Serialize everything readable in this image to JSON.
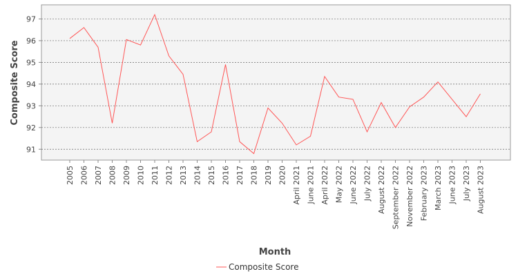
{
  "chart_data": {
    "type": "line",
    "categories": [
      "2005",
      "2006",
      "2007",
      "2008",
      "2009",
      "2010",
      "2011",
      "2012",
      "2013",
      "2014",
      "2015",
      "2016",
      "2017",
      "2018",
      "2019",
      "2020",
      "April 2021",
      "June 2021",
      "April 2022",
      "May 2022",
      "June 2022",
      "July 2022",
      "August 2022",
      "September 2022",
      "November 2022",
      "February 2023",
      "March 2023",
      "June 2023",
      "July 2023",
      "August 2023"
    ],
    "series": [
      {
        "name": "Composite Score",
        "color": "#ff5555",
        "values": [
          96.1,
          96.6,
          95.7,
          92.2,
          96.05,
          95.8,
          97.2,
          95.3,
          94.45,
          91.35,
          91.8,
          94.9,
          91.35,
          90.8,
          92.9,
          92.2,
          91.2,
          91.6,
          94.35,
          93.4,
          93.3,
          91.8,
          93.15,
          92.0,
          92.95,
          93.4,
          94.1,
          93.3,
          92.5,
          93.55
        ]
      }
    ],
    "xlabel": "Month",
    "ylabel": "Composite Score",
    "ylim": [
      90.5,
      97.65
    ],
    "yticks": [
      91,
      92,
      93,
      94,
      95,
      96,
      97
    ],
    "grid": true,
    "legend_position": "bottom"
  }
}
